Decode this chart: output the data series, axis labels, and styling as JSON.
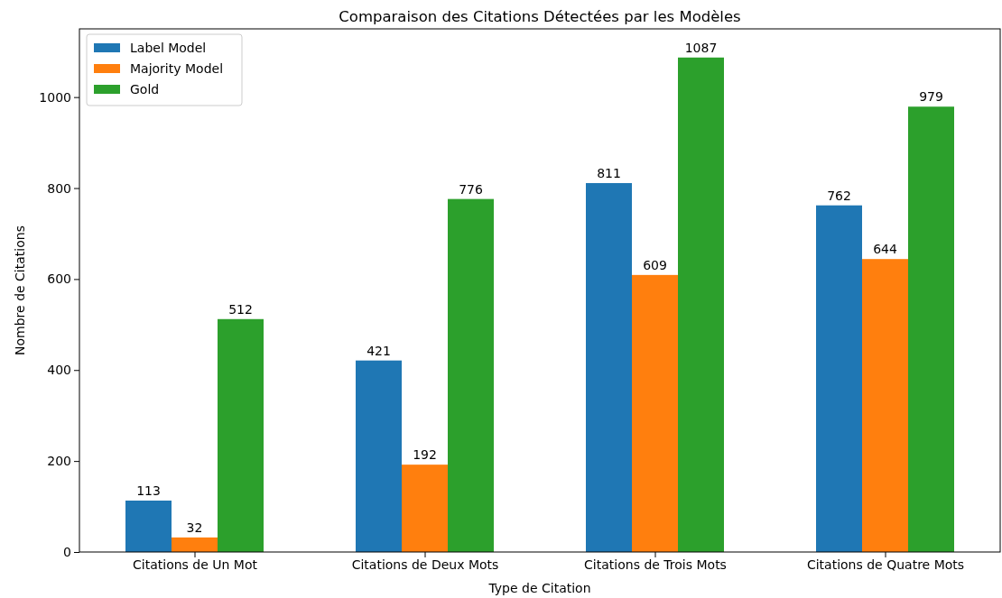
{
  "chart_data": {
    "type": "bar",
    "title": "Comparaison des Citations Détectées par les Modèles",
    "xlabel": "Type de Citation",
    "ylabel": "Nombre de Citations",
    "categories": [
      "Citations de Un Mot",
      "Citations de Deux Mots",
      "Citations de Trois Mots",
      "Citations de Quatre Mots"
    ],
    "series": [
      {
        "name": "Label Model",
        "color": "#1f77b4",
        "values": [
          113,
          421,
          811,
          762
        ]
      },
      {
        "name": "Majority Model",
        "color": "#ff7f0e",
        "values": [
          32,
          192,
          609,
          644
        ]
      },
      {
        "name": "Gold",
        "color": "#2ca02c",
        "values": [
          512,
          776,
          1087,
          979
        ]
      }
    ],
    "ylim": [
      0,
      1150
    ],
    "yticks": [
      0,
      200,
      400,
      600,
      800,
      1000
    ],
    "grid": false,
    "legend": "top left",
    "data_labels": true
  }
}
